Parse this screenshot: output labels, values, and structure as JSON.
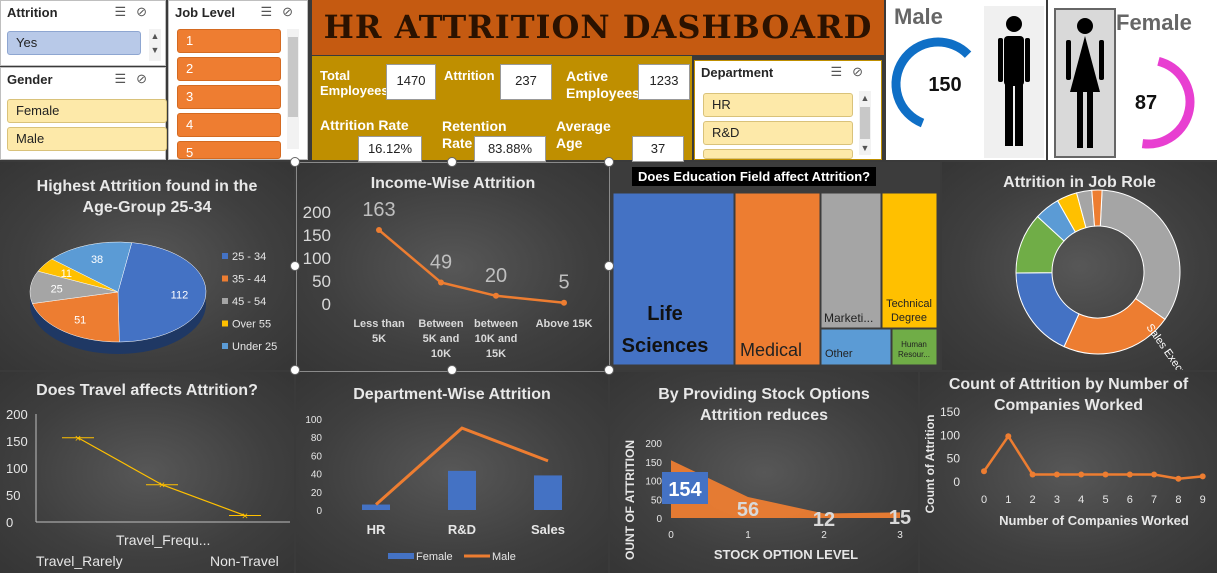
{
  "slicers": {
    "attrition": {
      "title": "Attrition",
      "items": [
        "Yes"
      ]
    },
    "gender": {
      "title": "Gender",
      "items": [
        "Female",
        "Male"
      ]
    },
    "job_level": {
      "title": "Job Level",
      "items": [
        "1",
        "2",
        "3",
        "4",
        "5"
      ]
    },
    "department": {
      "title": "Department",
      "items": [
        "HR",
        "R&D"
      ]
    }
  },
  "header": {
    "title": "HR ATTRITION DASHBOARD"
  },
  "kpis": {
    "total_employees": {
      "label": "Total Employees",
      "value": "1470"
    },
    "attrition": {
      "label": "Attrition",
      "value": "237"
    },
    "active_employees": {
      "label": "Active Employees",
      "value": "1233"
    },
    "attrition_rate": {
      "label": "Attrition Rate",
      "value": "16.12%"
    },
    "retention_rate": {
      "label": "Retention Rate",
      "value": "83.88%"
    },
    "average_age": {
      "label": "Average Age",
      "value": "37"
    }
  },
  "gender_cards": {
    "male": {
      "label": "Male",
      "value": "150",
      "fraction": 0.63,
      "color": "#0f6fc6"
    },
    "female": {
      "label": "Female",
      "value": "87",
      "fraction": 0.37,
      "color": "#e83fd1"
    }
  },
  "colors": {
    "blue": "#4472c4",
    "orange": "#ed7d31",
    "gray": "#a5a5a5",
    "yellow": "#ffc000",
    "lightblue": "#5b9bd5",
    "green": "#70ad47",
    "gold": "#bf8f00"
  },
  "chart_data": [
    {
      "id": "age",
      "type": "pie",
      "title": "Highest Attrition found in the Age-Group 25-34",
      "categories": [
        "25 - 34",
        "35 - 44",
        "45 - 54",
        "Over 55",
        "Under 25"
      ],
      "values": [
        112,
        51,
        25,
        11,
        38
      ],
      "legend": "right"
    },
    {
      "id": "income",
      "type": "line",
      "title": "Income-Wise Attrition",
      "categories": [
        "Less than 5K",
        "Between 5K and 10K",
        "between 10K and 15K",
        "Above 15K"
      ],
      "values": [
        163,
        49,
        20,
        5
      ],
      "yticks": [
        "200",
        "150",
        "100",
        "50",
        "0"
      ],
      "ylim": [
        0,
        200
      ]
    },
    {
      "id": "education",
      "type": "heatmap",
      "title": "Does Education Field affect Attrition?",
      "categories": [
        "Life Sciences",
        "Medical",
        "Marketi...",
        "Technical Degree",
        "Other",
        "Human Resour..."
      ]
    },
    {
      "id": "jobrole",
      "type": "pie",
      "title": "Attrition in Job Role",
      "labels": [
        "Sales Execu..."
      ]
    },
    {
      "id": "travel",
      "type": "line",
      "title": "Does Travel affects Attrition?",
      "categories": [
        "Travel_Rarely",
        "Travel_Frequ...",
        "Non-Travel"
      ],
      "values": [
        156,
        69,
        12
      ],
      "yticks": [
        "200",
        "150",
        "100",
        "50",
        "0"
      ],
      "ylim": [
        0,
        200
      ]
    },
    {
      "id": "department",
      "type": "bar",
      "title": "Department-Wise Attrition",
      "categories": [
        "HR",
        "R&D",
        "Sales"
      ],
      "series": [
        {
          "name": "Female",
          "values": [
            6,
            43,
            38
          ]
        },
        {
          "name": "Male",
          "values": [
            6,
            90,
            54
          ]
        }
      ],
      "yticks": [
        "100",
        "80",
        "60",
        "40",
        "20",
        "0"
      ],
      "ylim": [
        0,
        100
      ]
    },
    {
      "id": "stock",
      "type": "area",
      "title": "By Providing Stock Options Attrition reduces",
      "x": [
        "0",
        "1",
        "2",
        "3"
      ],
      "values": [
        154,
        56,
        12,
        15
      ],
      "xlabel": "STOCK OPTION LEVEL",
      "ylabel": "OUNT OF ATTRITION",
      "yticks": [
        "200",
        "150",
        "100",
        "50",
        "0"
      ],
      "ylim": [
        0,
        200
      ]
    },
    {
      "id": "companies",
      "type": "line",
      "title": "Count of Attrition by Number of Companies Worked",
      "x": [
        "0",
        "1",
        "2",
        "3",
        "4",
        "5",
        "6",
        "7",
        "8",
        "9"
      ],
      "values": [
        23,
        98,
        16,
        16,
        16,
        16,
        16,
        16,
        7,
        12
      ],
      "xlabel": "Number of Companies Worked",
      "ylabel": "Count of Attrition",
      "yticks": [
        "150",
        "100",
        "50",
        "0"
      ],
      "ylim": [
        0,
        150
      ]
    }
  ]
}
